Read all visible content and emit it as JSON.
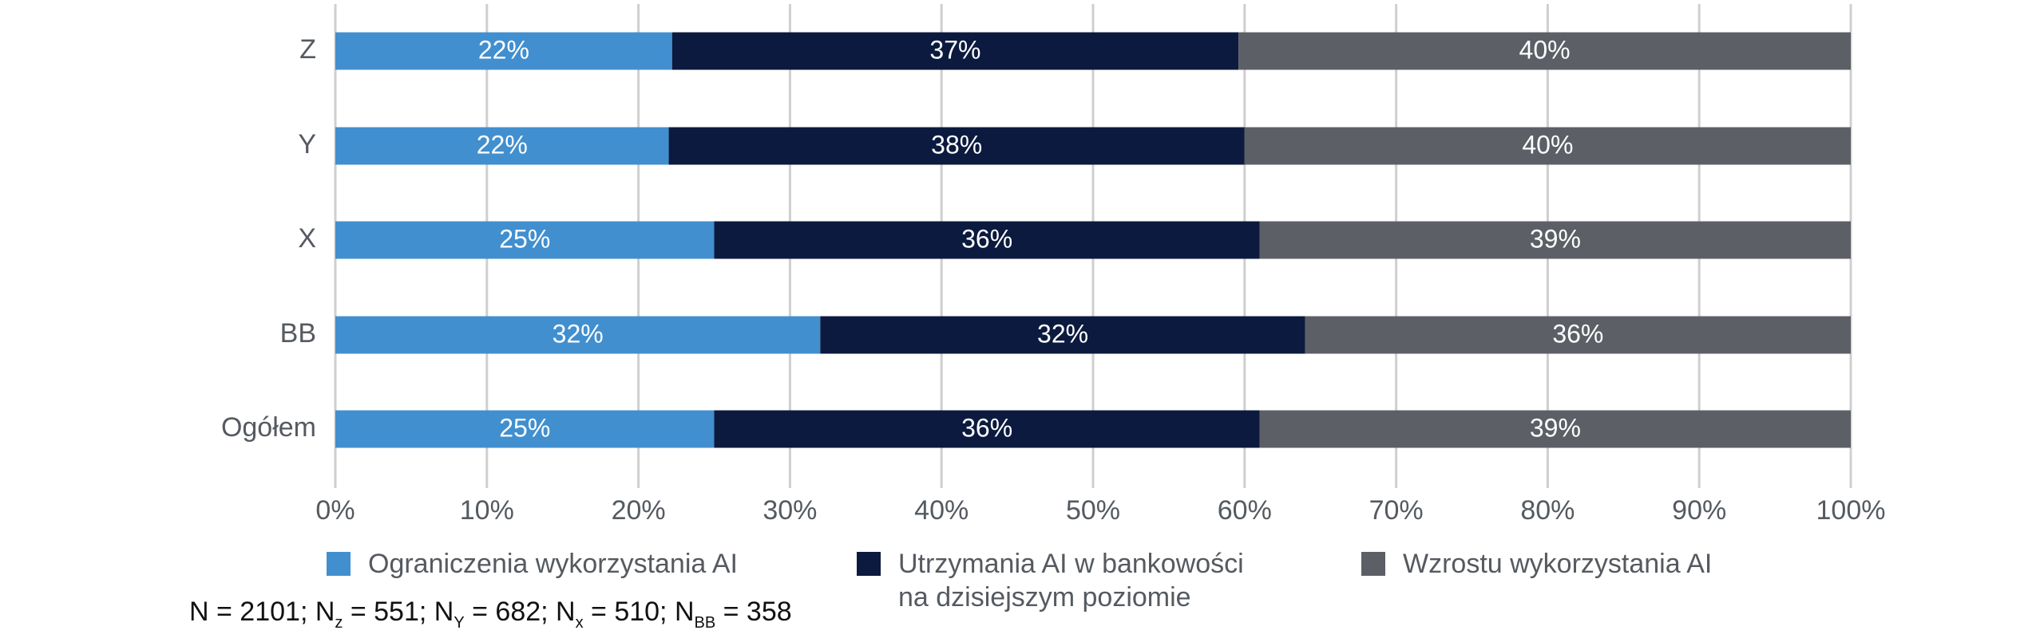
{
  "chart_data": {
    "type": "bar",
    "orientation": "horizontal",
    "stacked": true,
    "categories": [
      "Z",
      "Y",
      "X",
      "BB",
      "Ogółem"
    ],
    "series": [
      {
        "name": "Ograniczenia wykorzystania AI",
        "color": "#418fcf",
        "values": [
          22,
          22,
          25,
          32,
          25
        ],
        "labels": [
          "22%",
          "22%",
          "25%",
          "32%",
          "25%"
        ]
      },
      {
        "name": "Utrzymania AI w bankowości\nna dzisiejszym poziomie",
        "color": "#0b1a3e",
        "values": [
          37,
          38,
          36,
          32,
          36
        ],
        "labels": [
          "37%",
          "38%",
          "36%",
          "32%",
          "36%"
        ]
      },
      {
        "name": "Wzrostu wykorzystania AI",
        "color": "#5c5f66",
        "values": [
          40,
          40,
          39,
          36,
          39
        ],
        "labels": [
          "40%",
          "40%",
          "39%",
          "36%",
          "39%"
        ]
      }
    ],
    "xlim": [
      0,
      100
    ],
    "xticks": [
      "0%",
      "10%",
      "20%",
      "30%",
      "40%",
      "50%",
      "60%",
      "70%",
      "80%",
      "90%",
      "100%"
    ],
    "grid": true,
    "legend": "bottom"
  },
  "note": {
    "prefix": "N = 2101; N",
    "sub_z": "z",
    "part_z": " = 551; N",
    "sub_y": "Y",
    "part_y": " = 682; N",
    "sub_x": "x",
    "part_x": " = 510; N",
    "sub_bb": "BB",
    "part_bb": " = 358"
  }
}
